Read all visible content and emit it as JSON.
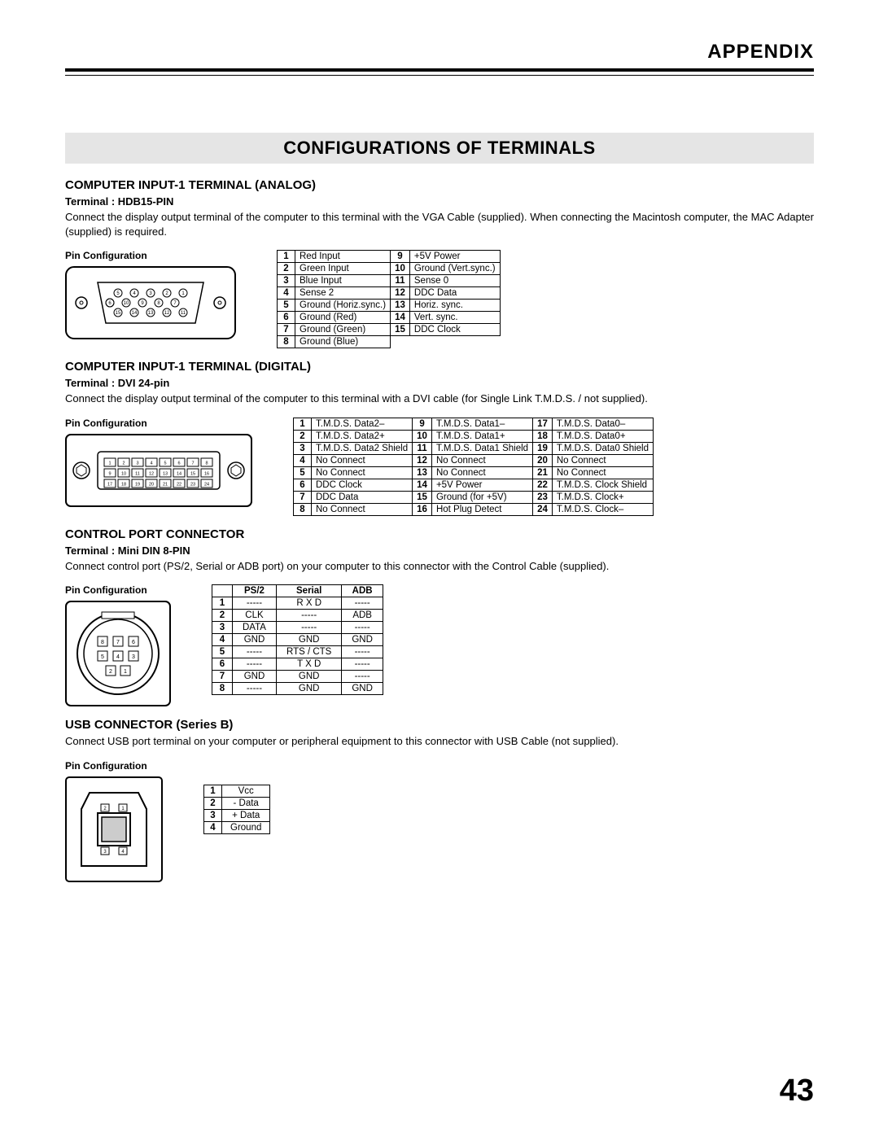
{
  "header": "APPENDIX",
  "main_title": "CONFIGURATIONS OF TERMINALS",
  "page_number": "43",
  "pin_config_label": "Pin Configuration",
  "sections": {
    "hdb15": {
      "head": "COMPUTER INPUT-1 TERMINAL (ANALOG)",
      "terminal": "Terminal : HDB15-PIN",
      "desc": "Connect the display output terminal of the computer to this terminal with the VGA Cable (supplied). When connecting the Macintosh computer, the MAC Adapter (supplied) is required.",
      "pins": [
        [
          "1",
          "Red Input",
          "9",
          "+5V Power"
        ],
        [
          "2",
          "Green Input",
          "10",
          "Ground (Vert.sync.)"
        ],
        [
          "3",
          "Blue Input",
          "11",
          "Sense 0"
        ],
        [
          "4",
          "Sense 2",
          "12",
          "DDC Data"
        ],
        [
          "5",
          "Ground (Horiz.sync.)",
          "13",
          "Horiz. sync."
        ],
        [
          "6",
          "Ground (Red)",
          "14",
          "Vert. sync."
        ],
        [
          "7",
          "Ground (Green)",
          "15",
          "DDC Clock"
        ],
        [
          "8",
          "Ground (Blue)",
          "",
          ""
        ]
      ]
    },
    "dvi": {
      "head": "COMPUTER INPUT-1 TERMINAL (DIGITAL)",
      "terminal": "Terminal : DVI 24-pin",
      "desc": "Connect the display output terminal of the computer to this terminal with a DVI cable (for Single Link T.M.D.S. / not supplied).",
      "pins": [
        [
          "1",
          "T.M.D.S. Data2–",
          "9",
          "T.M.D.S. Data1–",
          "17",
          "T.M.D.S. Data0–"
        ],
        [
          "2",
          "T.M.D.S. Data2+",
          "10",
          "T.M.D.S. Data1+",
          "18",
          "T.M.D.S. Data0+"
        ],
        [
          "3",
          "T.M.D.S. Data2 Shield",
          "11",
          "T.M.D.S. Data1 Shield",
          "19",
          "T.M.D.S. Data0 Shield"
        ],
        [
          "4",
          "No Connect",
          "12",
          "No Connect",
          "20",
          "No Connect"
        ],
        [
          "5",
          "No Connect",
          "13",
          "No Connect",
          "21",
          "No Connect"
        ],
        [
          "6",
          "DDC Clock",
          "14",
          "+5V Power",
          "22",
          "T.M.D.S. Clock Shield"
        ],
        [
          "7",
          "DDC Data",
          "15",
          "Ground (for +5V)",
          "23",
          "T.M.D.S. Clock+"
        ],
        [
          "8",
          "No Connect",
          "16",
          "Hot Plug Detect",
          "24",
          "T.M.D.S. Clock–"
        ]
      ]
    },
    "ctrl": {
      "head": "CONTROL PORT CONNECTOR",
      "terminal": "Terminal : Mini DIN 8-PIN",
      "desc": "Connect control port (PS/2, Serial or ADB port) on your computer to this connector with the Control Cable (supplied).",
      "headers": [
        "",
        "PS/2",
        "Serial",
        "ADB"
      ],
      "rows": [
        [
          "1",
          "-----",
          "R X D",
          "-----"
        ],
        [
          "2",
          "CLK",
          "-----",
          "ADB"
        ],
        [
          "3",
          "DATA",
          "-----",
          "-----"
        ],
        [
          "4",
          "GND",
          "GND",
          "GND"
        ],
        [
          "5",
          "-----",
          "RTS / CTS",
          "-----"
        ],
        [
          "6",
          "-----",
          "T X D",
          "-----"
        ],
        [
          "7",
          "GND",
          "GND",
          "-----"
        ],
        [
          "8",
          "-----",
          "GND",
          "GND"
        ]
      ]
    },
    "usb": {
      "head": "USB CONNECTOR (Series B)",
      "desc": "Connect USB port terminal on your computer or peripheral equipment to this connector with USB Cable (not supplied).",
      "pins": [
        [
          "1",
          "Vcc"
        ],
        [
          "2",
          "- Data"
        ],
        [
          "3",
          "+ Data"
        ],
        [
          "4",
          "Ground"
        ]
      ]
    }
  }
}
